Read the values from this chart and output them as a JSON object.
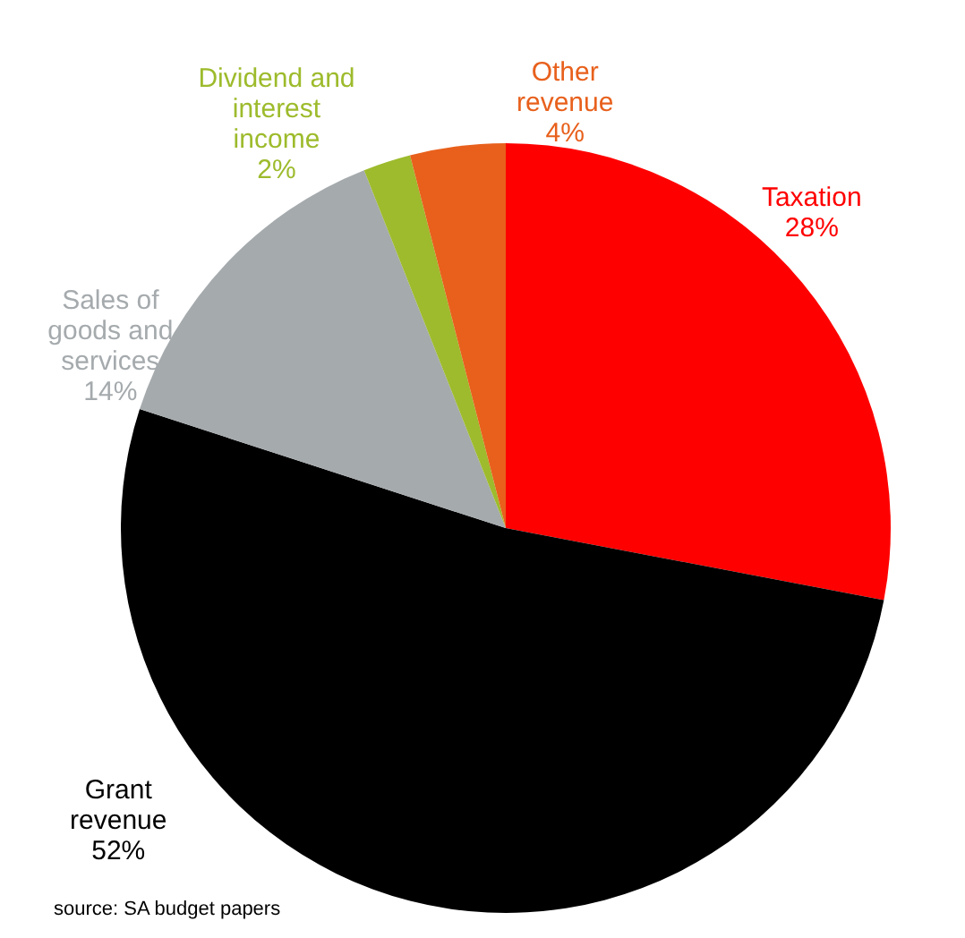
{
  "chart_data": {
    "type": "pie",
    "categories": [
      "Taxation",
      "Grant revenue",
      "Sales of goods and services",
      "Dividend and interest income",
      "Other revenue"
    ],
    "values": [
      28,
      52,
      14,
      2,
      4
    ],
    "colors": [
      "#ff0000",
      "#000000",
      "#a5aaad",
      "#9dbb2c",
      "#e8601c"
    ],
    "value_labels": [
      "28%",
      "52%",
      "14%",
      "2%",
      "4%"
    ],
    "legend": false,
    "annotations": [
      "source: SA budget papers"
    ]
  }
}
